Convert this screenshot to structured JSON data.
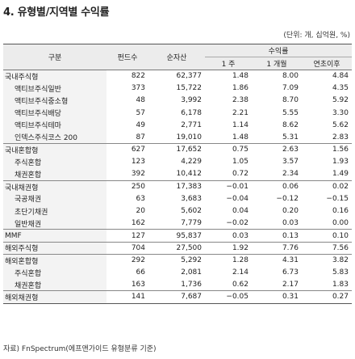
{
  "title": "4. 유형별/지역별 수익률",
  "unit_note": "(단위: 개, 십억원, %)",
  "headers": {
    "category": "구분",
    "funds": "펀드수",
    "net_assets": "순자산",
    "returns_group": "수익률",
    "r1w": "1 주",
    "r1m": "1 개월",
    "ytd": "연초이후"
  },
  "rows": [
    {
      "name": "국내주식형",
      "funds": "822",
      "assets": "62,377",
      "r1w": "1.48",
      "r1m": "8.00",
      "ytd": "4.84"
    },
    {
      "name": "액티브주식일반",
      "funds": "373",
      "assets": "15,722",
      "r1w": "1.86",
      "r1m": "7.09",
      "ytd": "4.35"
    },
    {
      "name": "액티브주식중소형",
      "funds": "48",
      "assets": "3,992",
      "r1w": "2.38",
      "r1m": "8.70",
      "ytd": "5.92"
    },
    {
      "name": "액티브주식배당",
      "funds": "57",
      "assets": "6,178",
      "r1w": "2.21",
      "r1m": "5.55",
      "ytd": "3.30"
    },
    {
      "name": "액티브주식테마",
      "funds": "49",
      "assets": "2,771",
      "r1w": "1.14",
      "r1m": "8.62",
      "ytd": "5.62"
    },
    {
      "name": "인덱스주식코스 200",
      "funds": "87",
      "assets": "19,010",
      "r1w": "1.48",
      "r1m": "5.31",
      "ytd": "2.83"
    },
    {
      "name": "국내혼합형",
      "funds": "627",
      "assets": "17,652",
      "r1w": "0.75",
      "r1m": "2.63",
      "ytd": "1.56"
    },
    {
      "name": "주식혼합",
      "funds": "123",
      "assets": "4,229",
      "r1w": "1.05",
      "r1m": "3.57",
      "ytd": "1.93"
    },
    {
      "name": "채권혼합",
      "funds": "392",
      "assets": "10,412",
      "r1w": "0.72",
      "r1m": "2.34",
      "ytd": "1.49"
    },
    {
      "name": "국내채권형",
      "funds": "250",
      "assets": "17,383",
      "r1w": "−0.01",
      "r1m": "0.06",
      "ytd": "0.02"
    },
    {
      "name": "국공채권",
      "funds": "63",
      "assets": "3,683",
      "r1w": "−0.04",
      "r1m": "−0.12",
      "ytd": "−0.15"
    },
    {
      "name": "초단기채권",
      "funds": "20",
      "assets": "5,602",
      "r1w": "0.04",
      "r1m": "0.20",
      "ytd": "0.16"
    },
    {
      "name": "일반채권",
      "funds": "162",
      "assets": "7,779",
      "r1w": "−0.02",
      "r1m": "0.03",
      "ytd": "0.00"
    },
    {
      "name": "MMF",
      "funds": "127",
      "assets": "95,837",
      "r1w": "0.03",
      "r1m": "0.13",
      "ytd": "0.10"
    },
    {
      "name": "해외주식형",
      "funds": "704",
      "assets": "27,500",
      "r1w": "1.92",
      "r1m": "7.76",
      "ytd": "7.56"
    },
    {
      "name": "해외혼합형",
      "funds": "292",
      "assets": "5,292",
      "r1w": "1.28",
      "r1m": "4.31",
      "ytd": "3.82"
    },
    {
      "name": "주식혼합",
      "funds": "66",
      "assets": "2,081",
      "r1w": "2.14",
      "r1m": "6.73",
      "ytd": "5.83"
    },
    {
      "name": "채권혼합",
      "funds": "163",
      "assets": "1,736",
      "r1w": "0.62",
      "r1m": "2.17",
      "ytd": "1.83"
    },
    {
      "name": "해외채권형",
      "funds": "141",
      "assets": "7,687",
      "r1w": "−0.05",
      "r1m": "0.31",
      "ytd": "0.27"
    }
  ],
  "source": "자료) FnSpectrum(에프앤가이드 유형분류 기준)"
}
